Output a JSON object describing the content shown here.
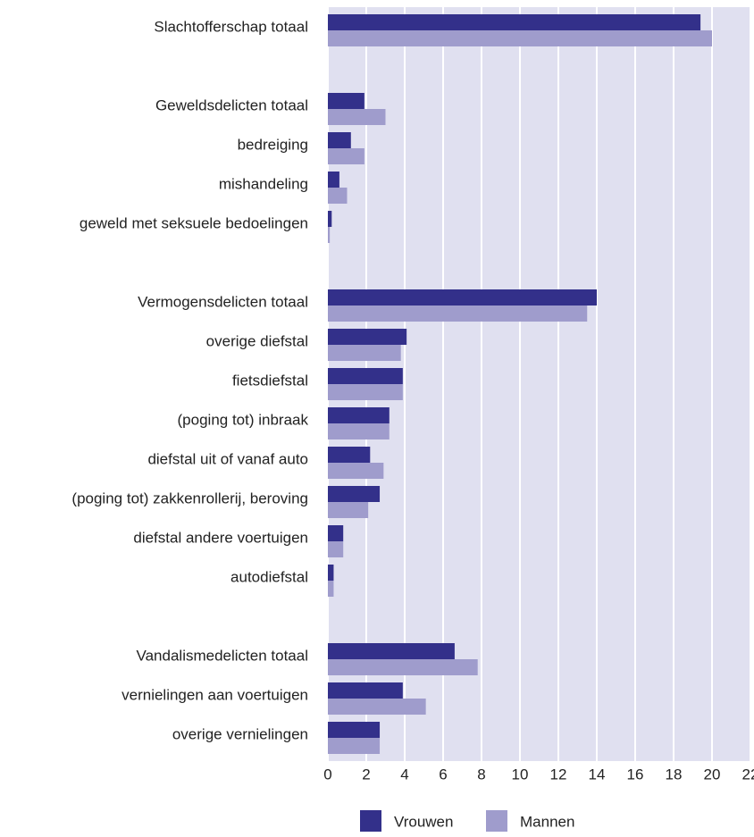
{
  "chart_data": {
    "type": "bar",
    "orientation": "horizontal",
    "categories": [
      "Slachtofferschap totaal",
      null,
      "Geweldsdelicten totaal",
      "bedreiging",
      "mishandeling",
      "geweld met seksuele bedoelingen",
      null,
      "Vermogensdelicten totaal",
      "overige diefstal",
      "fietsdiefstal",
      "(poging tot) inbraak",
      "diefstal uit of vanaf auto",
      "(poging tot) zakkenrollerij, beroving",
      "diefstal andere voertuigen",
      "autodiefstal",
      null,
      "Vandalismedelicten totaal",
      "vernielingen aan voertuigen",
      "overige vernielingen"
    ],
    "series": [
      {
        "name": "Vrouwen",
        "color": "#33308a",
        "values": [
          19.4,
          null,
          1.9,
          1.2,
          0.6,
          0.2,
          null,
          14.0,
          4.1,
          3.9,
          3.2,
          2.2,
          2.7,
          0.8,
          0.3,
          null,
          6.6,
          3.9,
          2.7
        ]
      },
      {
        "name": "Mannen",
        "color": "#9f9ccc",
        "values": [
          20.0,
          null,
          3.0,
          1.9,
          1.0,
          0.1,
          null,
          13.5,
          3.8,
          3.9,
          3.2,
          2.9,
          2.1,
          0.8,
          0.3,
          null,
          7.8,
          5.1,
          2.7
        ]
      }
    ],
    "xlim": [
      0,
      22
    ],
    "xticks": [
      0,
      2,
      4,
      6,
      8,
      10,
      12,
      14,
      16,
      18,
      20,
      22
    ],
    "grid": true,
    "legend": "bottom"
  }
}
